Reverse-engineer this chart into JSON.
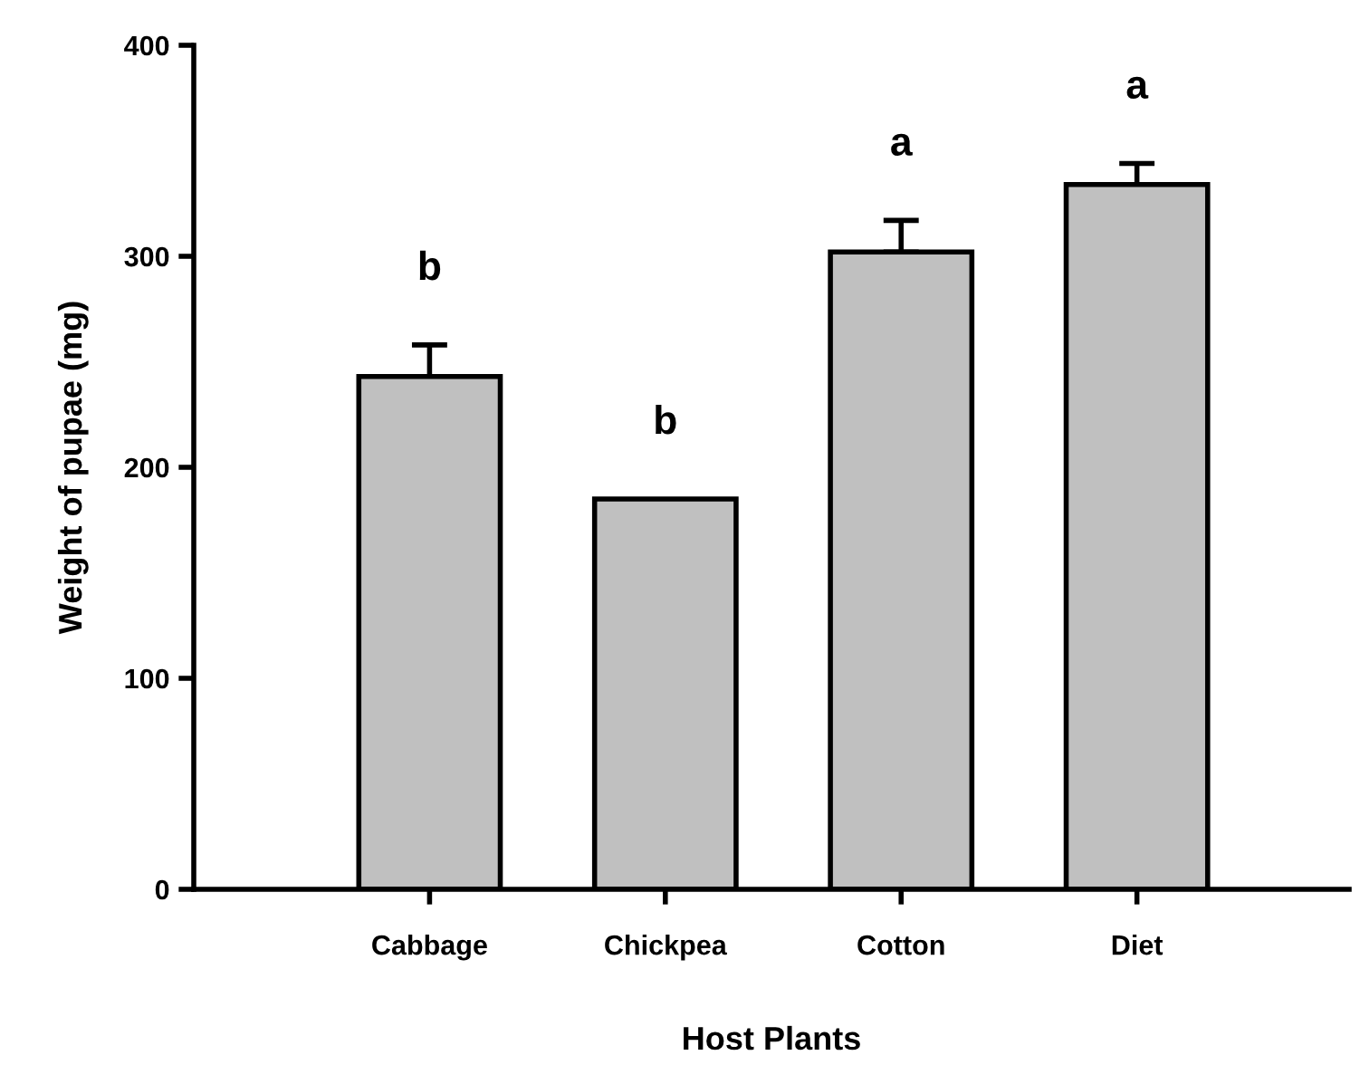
{
  "chart_data": {
    "type": "bar",
    "xlabel": "Host Plants",
    "ylabel": "Weight of pupae (mg)",
    "categories": [
      "Cabbage",
      "Chickpea",
      "Cotton",
      "Diet"
    ],
    "values": [
      243,
      185,
      302,
      334
    ],
    "errors": [
      [
        243,
        258
      ],
      null,
      [
        302,
        317
      ],
      [
        334,
        344
      ]
    ],
    "color": "#c0c0c0",
    "ylim": [
      0,
      400
    ],
    "yticks": [
      0,
      100,
      200,
      300,
      400
    ],
    "grid": false,
    "annotations": [
      "b",
      "b",
      "a",
      "a"
    ]
  }
}
